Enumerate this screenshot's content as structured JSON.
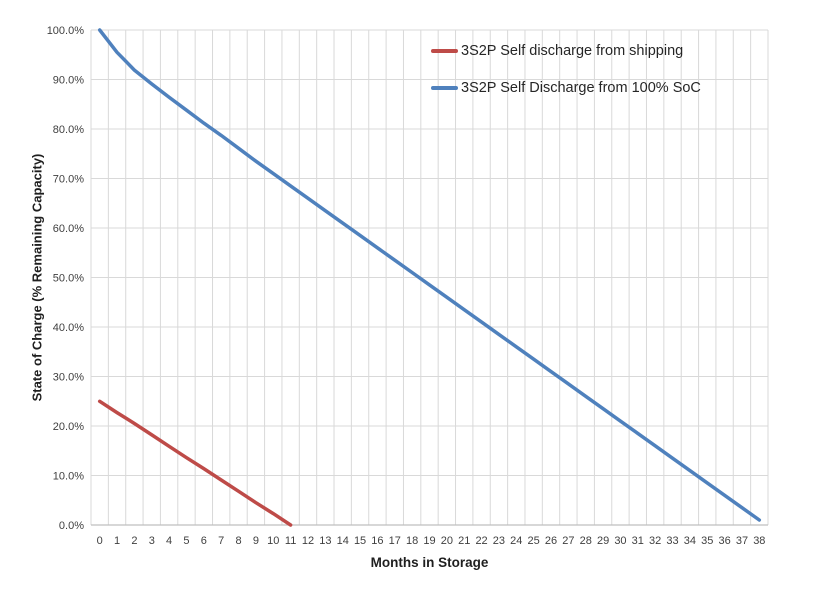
{
  "chart_data": {
    "type": "line",
    "title": "",
    "xlabel": "Months in Storage",
    "ylabel": "State of Charge (% Remaining Capacity)",
    "xlim": [
      0,
      38
    ],
    "ylim": [
      0,
      100
    ],
    "grid": "both",
    "legend_position": "top-center",
    "x_ticks": [
      "0",
      "1",
      "2",
      "3",
      "4",
      "5",
      "6",
      "7",
      "8",
      "9",
      "10",
      "11",
      "12",
      "13",
      "14",
      "15",
      "16",
      "17",
      "18",
      "19",
      "20",
      "21",
      "22",
      "23",
      "24",
      "25",
      "26",
      "27",
      "28",
      "29",
      "30",
      "31",
      "32",
      "33",
      "34",
      "35",
      "36",
      "37",
      "38"
    ],
    "y_ticks": [
      "0.0%",
      "10.0%",
      "20.0%",
      "30.0%",
      "40.0%",
      "50.0%",
      "60.0%",
      "70.0%",
      "80.0%",
      "90.0%",
      "100.0%"
    ],
    "y_tick_values": [
      0,
      10,
      20,
      30,
      40,
      50,
      60,
      70,
      80,
      90,
      100
    ],
    "series": [
      {
        "name": "3S2P Self discharge from shipping",
        "color": "#BE4B48",
        "months": [
          0,
          1,
          2,
          3,
          4,
          5,
          6,
          7,
          8,
          9,
          10,
          11
        ],
        "values": [
          25.0,
          22.7,
          20.5,
          18.2,
          15.9,
          13.6,
          11.4,
          9.1,
          6.8,
          4.5,
          2.3,
          0.0
        ]
      },
      {
        "name": "3S2P Self Discharge from 100% SoC",
        "color": "#4F81BD",
        "months": [
          0,
          1,
          2,
          3,
          4,
          5,
          6,
          7,
          8,
          9,
          10,
          11,
          12,
          13,
          14,
          15,
          16,
          17,
          18,
          19,
          20,
          21,
          22,
          23,
          24,
          25,
          26,
          27,
          28,
          29,
          30,
          31,
          32,
          33,
          34,
          35,
          36,
          37,
          38
        ],
        "values": [
          100.0,
          95.5,
          91.9,
          89.1,
          86.4,
          83.8,
          81.2,
          78.7,
          76.1,
          73.5,
          71.0,
          68.5,
          66.0,
          63.5,
          61.0,
          58.5,
          56.0,
          53.5,
          51.0,
          48.5,
          46.0,
          43.5,
          41.0,
          38.5,
          36.0,
          33.5,
          31.0,
          28.5,
          26.0,
          23.5,
          21.0,
          18.5,
          16.0,
          13.5,
          11.0,
          8.5,
          6.0,
          3.5,
          1.0
        ]
      }
    ]
  },
  "colors": {
    "background": "#FFFFFF",
    "gridline": "#D9D9D9",
    "axis_line": "#BFBFBF",
    "tick_text": "#3F3F3F",
    "title_text": "#1F1F1F"
  }
}
